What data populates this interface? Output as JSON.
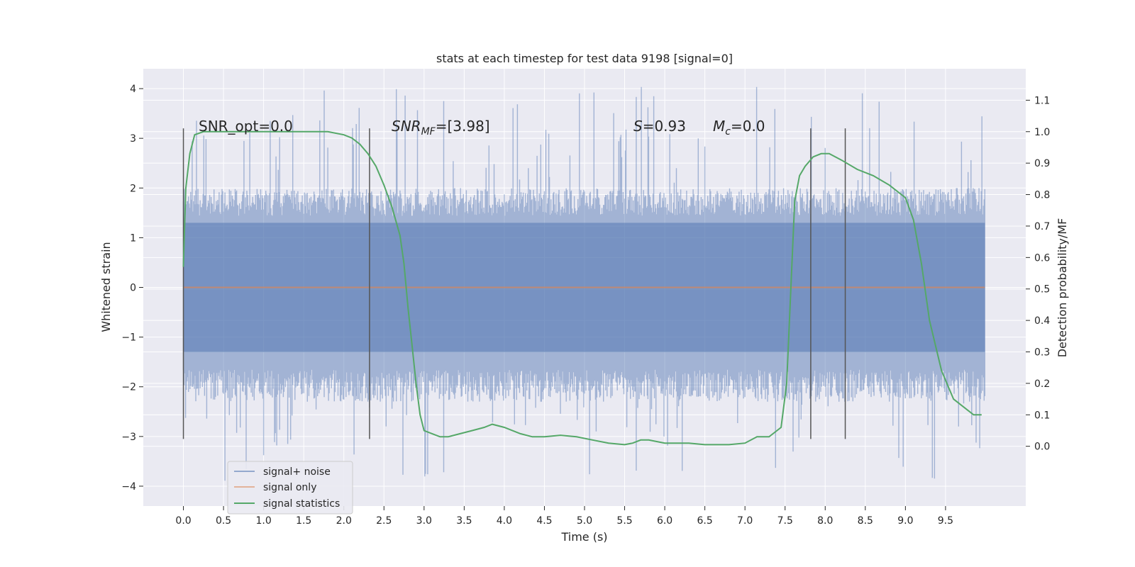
{
  "chart_data": {
    "type": "line",
    "title": "stats at each timestep for test data 9198 [signal=0]",
    "xlabel": "Time (s)",
    "ylabel": "Whitened strain",
    "y2label": "Detection probability/MF",
    "xlim": [
      -0.5,
      10.5
    ],
    "ylim": [
      -4.4,
      4.4
    ],
    "y2lim": [
      -0.19,
      1.2
    ],
    "xticks": [
      "0.0",
      "0.5",
      "1.0",
      "1.5",
      "2.0",
      "2.5",
      "3.0",
      "3.5",
      "4.0",
      "4.5",
      "5.0",
      "5.5",
      "6.0",
      "6.5",
      "7.0",
      "7.5",
      "8.0",
      "8.5",
      "9.0",
      "9.5"
    ],
    "yticks": [
      "4",
      "3",
      "2",
      "1",
      "0",
      "−1",
      "−2",
      "−3",
      "−4"
    ],
    "y2ticks": [
      "1.1",
      "1.0",
      "0.9",
      "0.8",
      "0.7",
      "0.6",
      "0.5",
      "0.4",
      "0.3",
      "0.2",
      "0.1",
      "0.0"
    ],
    "annotations": {
      "snr_opt": "SNR_opt=0.0",
      "snr_mf": "=[3.98]",
      "s": "=0.93",
      "mc": "=0.0"
    },
    "vertical_lines_x": [
      0.0,
      2.32,
      7.82,
      8.25
    ],
    "grid": true,
    "legend_position": "lower-left",
    "series": [
      {
        "name": "signal+ noise",
        "axis": "left",
        "kind": "noise",
        "x_range": [
          0.0,
          9.99
        ],
        "core_band": [
          -1.3,
          1.3
        ],
        "typical_envelope": [
          -2.3,
          2.0
        ],
        "extreme_range": [
          -3.9,
          4.05
        ],
        "color": "#4c72b0"
      },
      {
        "name": "signal only",
        "axis": "left",
        "x": [
          0.0,
          9.99
        ],
        "y": [
          0.0,
          0.0
        ],
        "color": "#dd8452"
      },
      {
        "name": "signal statistics",
        "axis": "right",
        "color": "#55a868",
        "x": [
          0.0,
          0.03,
          0.08,
          0.14,
          0.25,
          0.5,
          1.0,
          1.5,
          1.8,
          2.0,
          2.1,
          2.2,
          2.3,
          2.4,
          2.5,
          2.6,
          2.7,
          2.75,
          2.8,
          2.85,
          2.9,
          2.95,
          3.0,
          3.1,
          3.2,
          3.3,
          3.45,
          3.6,
          3.75,
          3.85,
          4.0,
          4.2,
          4.35,
          4.5,
          4.7,
          4.9,
          5.1,
          5.3,
          5.5,
          5.6,
          5.7,
          5.8,
          6.0,
          6.3,
          6.5,
          6.8,
          7.0,
          7.15,
          7.3,
          7.45,
          7.52,
          7.58,
          7.62,
          7.68,
          7.75,
          7.85,
          7.95,
          8.05,
          8.2,
          8.4,
          8.6,
          8.8,
          9.0,
          9.1,
          9.2,
          9.3,
          9.45,
          9.6,
          9.75,
          9.85,
          9.95
        ],
        "y": [
          0.57,
          0.82,
          0.93,
          0.99,
          1.0,
          1.0,
          1.0,
          1.0,
          1.0,
          0.99,
          0.98,
          0.96,
          0.93,
          0.89,
          0.83,
          0.76,
          0.67,
          0.58,
          0.44,
          0.32,
          0.2,
          0.1,
          0.05,
          0.04,
          0.03,
          0.03,
          0.04,
          0.05,
          0.06,
          0.07,
          0.06,
          0.04,
          0.03,
          0.03,
          0.035,
          0.03,
          0.02,
          0.01,
          0.005,
          0.01,
          0.02,
          0.02,
          0.01,
          0.01,
          0.005,
          0.005,
          0.01,
          0.03,
          0.03,
          0.06,
          0.2,
          0.55,
          0.78,
          0.86,
          0.89,
          0.92,
          0.93,
          0.93,
          0.91,
          0.88,
          0.86,
          0.83,
          0.79,
          0.72,
          0.58,
          0.4,
          0.24,
          0.15,
          0.12,
          0.1,
          0.1
        ]
      }
    ]
  }
}
